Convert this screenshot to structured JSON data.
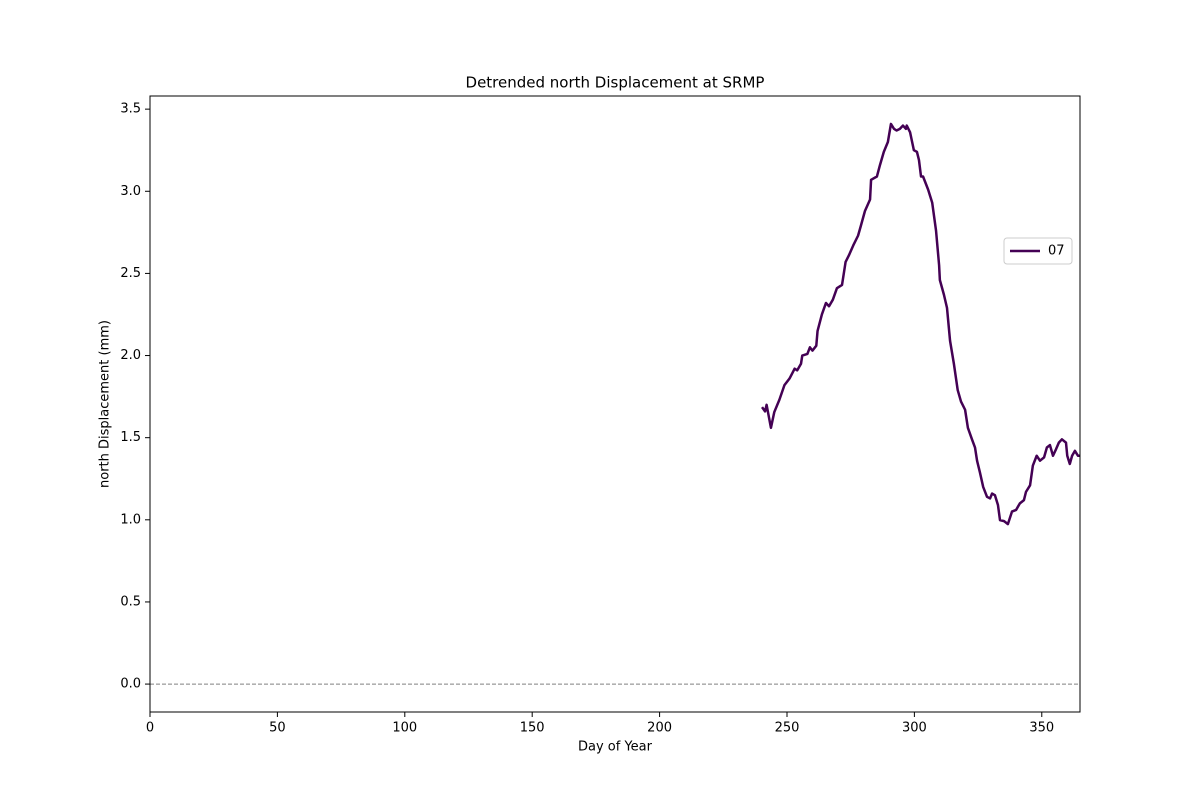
{
  "chart_data": {
    "type": "line",
    "title": "Detrended north Displacement at SRMP",
    "x_label": "Day of Year",
    "y_label": "north Displacement (mm)",
    "x": [
      240.2,
      241.4,
      242,
      243.7,
      245,
      247,
      249,
      251,
      253,
      254,
      255.5,
      256,
      258,
      259,
      260,
      261.5,
      262,
      263.7,
      265.3,
      266.5,
      268,
      269.6,
      271.6,
      273,
      274.3,
      276,
      277.9,
      279,
      280.6,
      282.6,
      283,
      285.3,
      286.5,
      288,
      289.6,
      290.8,
      292,
      293,
      294.3,
      295.5,
      296.7,
      297,
      298.3,
      299.8,
      301,
      301.8,
      302.6,
      303.4,
      305.4,
      307,
      308.5,
      309.7,
      310,
      311.6,
      312.8,
      314,
      315.5,
      317,
      318.3,
      319.9,
      321,
      322.6,
      323.8,
      324.6,
      325.7,
      327,
      328.5,
      329.7,
      330.5,
      331.6,
      332.8,
      333.6,
      335.2,
      336.7,
      338.3,
      339.9,
      341.4,
      343,
      343.8,
      345.4,
      346.5,
      348,
      349.3,
      350.9,
      352,
      353.2,
      354.4,
      355.6,
      356.7,
      357.9,
      359.5,
      360,
      361,
      361.9,
      363,
      364.2,
      365
    ],
    "series": [
      {
        "name": "07",
        "color": "#440154",
        "values": [
          1.686,
          1.66,
          1.7,
          1.56,
          1.655,
          1.73,
          1.82,
          1.86,
          1.92,
          1.91,
          1.95,
          2.0,
          2.01,
          2.05,
          2.03,
          2.06,
          2.15,
          2.25,
          2.32,
          2.3,
          2.34,
          2.41,
          2.43,
          2.57,
          2.61,
          2.67,
          2.73,
          2.79,
          2.88,
          2.95,
          3.07,
          3.09,
          3.16,
          3.24,
          3.3,
          3.41,
          3.38,
          3.37,
          3.38,
          3.4,
          3.38,
          3.4,
          3.36,
          3.25,
          3.24,
          3.19,
          3.09,
          3.09,
          3.01,
          2.93,
          2.76,
          2.55,
          2.46,
          2.37,
          2.29,
          2.09,
          1.95,
          1.79,
          1.72,
          1.67,
          1.56,
          1.49,
          1.44,
          1.36,
          1.29,
          1.2,
          1.14,
          1.13,
          1.16,
          1.15,
          1.09,
          0.998,
          0.992,
          0.974,
          1.05,
          1.06,
          1.1,
          1.12,
          1.17,
          1.21,
          1.33,
          1.39,
          1.36,
          1.38,
          1.44,
          1.455,
          1.39,
          1.43,
          1.47,
          1.49,
          1.47,
          1.39,
          1.34,
          1.39,
          1.42,
          1.39,
          1.39
        ]
      }
    ],
    "xlim": [
      0,
      365
    ],
    "ylim": [
      -0.17,
      3.58
    ],
    "xticks": [
      0,
      50,
      100,
      150,
      200,
      250,
      300,
      350
    ],
    "yticks": [
      {
        "value": 0,
        "label": "0.0"
      },
      0.5,
      {
        "value": 1,
        "label": "1.0"
      },
      1.5,
      {
        "value": 2,
        "label": "2.0"
      },
      2.5,
      {
        "value": 3,
        "label": "3.0"
      },
      3.5
    ],
    "hline": 0,
    "legend": "right"
  }
}
